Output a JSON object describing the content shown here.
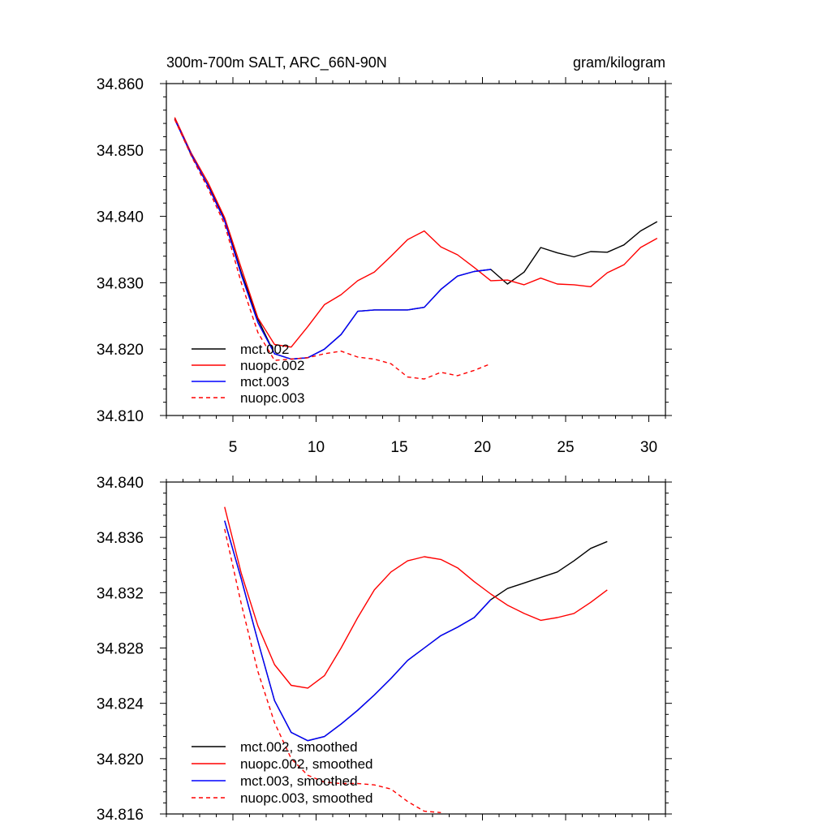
{
  "chart_data": [
    {
      "type": "line",
      "title_left": "300m-700m SALT, ARC_66N-90N",
      "title_right": "gram/kilogram",
      "xlim": [
        1,
        31
      ],
      "ylim": [
        34.81,
        34.86
      ],
      "xticks": [
        5,
        10,
        15,
        20,
        25,
        30
      ],
      "xtick_labels": [
        "5",
        "10",
        "15",
        "20",
        "25",
        "30"
      ],
      "yticks": [
        34.81,
        34.82,
        34.83,
        34.84,
        34.85,
        34.86
      ],
      "ytick_labels": [
        "34.810",
        "34.820",
        "34.830",
        "34.840",
        "34.850",
        "34.860"
      ],
      "legend_position": "bottom-left",
      "series": [
        {
          "name": "mct.002",
          "color": "#000000",
          "dash": "solid",
          "x": [
            1.5,
            2.5,
            3.5,
            4.5,
            5.5,
            6.5,
            7.5,
            8.5,
            9.5,
            10.5,
            11.5,
            12.5,
            13.5,
            14.5,
            15.5,
            16.5,
            17.5,
            18.5,
            19.5,
            20.5,
            21.5,
            22.5,
            23.5,
            24.5,
            25.5,
            26.5,
            27.5,
            28.5,
            29.5,
            30.5
          ],
          "y": [
            34.8547,
            34.8492,
            34.8447,
            34.8395,
            34.8315,
            34.8245,
            34.8193,
            34.8185,
            34.8187,
            34.82,
            34.8222,
            34.8257,
            34.8259,
            34.8259,
            34.8259,
            34.8263,
            34.829,
            34.831,
            34.8317,
            34.832,
            34.8298,
            34.8316,
            34.8353,
            34.8345,
            34.8339,
            34.8347,
            34.8346,
            34.8357,
            34.8378,
            34.8392
          ]
        },
        {
          "name": "nuopc.002",
          "color": "#ff0000",
          "dash": "solid",
          "x": [
            1.5,
            2.5,
            3.5,
            4.5,
            5.5,
            6.5,
            7.5,
            8.5,
            9.5,
            10.5,
            11.5,
            12.5,
            13.5,
            14.5,
            15.5,
            16.5,
            17.5,
            18.5,
            19.5,
            20.5,
            21.5,
            22.5,
            23.5,
            24.5,
            25.5,
            26.5,
            27.5,
            28.5,
            29.5,
            30.5
          ],
          "y": [
            34.8549,
            34.8495,
            34.8451,
            34.8398,
            34.8322,
            34.8247,
            34.8207,
            34.8203,
            34.8234,
            34.8267,
            34.8282,
            34.8303,
            34.8316,
            34.834,
            34.8365,
            34.8378,
            34.8354,
            34.8342,
            34.8323,
            34.8303,
            34.8304,
            34.8297,
            34.8307,
            34.8298,
            34.8297,
            34.8294,
            34.8315,
            34.8327,
            34.8353,
            34.8367
          ]
        },
        {
          "name": "mct.003",
          "color": "#0000ff",
          "dash": "solid",
          "x": [
            1.5,
            2.5,
            3.5,
            4.5,
            5.5,
            6.5,
            7.5,
            8.5,
            9.5,
            10.5,
            11.5,
            12.5,
            13.5,
            14.5,
            15.5,
            16.5,
            17.5,
            18.5,
            19.5,
            20.5
          ],
          "y": [
            34.8546,
            34.8493,
            34.8446,
            34.8393,
            34.8312,
            34.824,
            34.8193,
            34.8185,
            34.8187,
            34.82,
            34.8222,
            34.8257,
            34.8259,
            34.8259,
            34.8259,
            34.8263,
            34.829,
            34.831,
            34.8317,
            34.832
          ]
        },
        {
          "name": "nuopc.003",
          "color": "#ff0000",
          "dash": "dashed",
          "x": [
            1.5,
            2.5,
            3.5,
            4.5,
            5.5,
            6.5,
            7.5,
            8.5,
            9.5,
            10.5,
            11.5,
            12.5,
            13.5,
            14.5,
            15.5,
            16.5,
            17.5,
            18.5,
            19.5,
            20.5
          ],
          "y": [
            34.8546,
            34.8491,
            34.8442,
            34.8388,
            34.83,
            34.8225,
            34.8183,
            34.8185,
            34.8187,
            34.8193,
            34.8197,
            34.8188,
            34.8185,
            34.8178,
            34.8158,
            34.8155,
            34.8165,
            34.816,
            34.8168,
            34.8178
          ]
        }
      ]
    },
    {
      "type": "line",
      "xlim": [
        1,
        31
      ],
      "ylim": [
        34.816,
        34.84
      ],
      "xticks": [
        5,
        10,
        15,
        20,
        25,
        30
      ],
      "yticks": [
        34.816,
        34.82,
        34.824,
        34.828,
        34.832,
        34.836,
        34.84
      ],
      "ytick_labels": [
        "34.816",
        "34.820",
        "34.824",
        "34.828",
        "34.832",
        "34.836",
        "34.840"
      ],
      "legend_position": "bottom-left",
      "series": [
        {
          "name": "mct.002, smoothed",
          "color": "#000000",
          "dash": "solid",
          "x": [
            4.5,
            5.5,
            6.5,
            7.5,
            8.5,
            9.5,
            10.5,
            11.5,
            12.5,
            13.5,
            14.5,
            15.5,
            16.5,
            17.5,
            18.5,
            19.5,
            20.5,
            21.5,
            22.5,
            23.5,
            24.5,
            25.5,
            26.5,
            27.5
          ],
          "y": [
            34.8372,
            34.833,
            34.8285,
            34.8242,
            34.8219,
            34.8213,
            34.8216,
            34.8225,
            34.8235,
            34.8246,
            34.8258,
            34.8271,
            34.828,
            34.8289,
            34.8295,
            34.8302,
            34.8315,
            34.8323,
            34.8327,
            34.8331,
            34.8335,
            34.8343,
            34.8352,
            34.8357
          ]
        },
        {
          "name": "nuopc.002, smoothed",
          "color": "#ff0000",
          "dash": "solid",
          "x": [
            4.5,
            5.5,
            6.5,
            7.5,
            8.5,
            9.5,
            10.5,
            11.5,
            12.5,
            13.5,
            14.5,
            15.5,
            16.5,
            17.5,
            18.5,
            19.5,
            20.5,
            21.5,
            22.5,
            23.5,
            24.5,
            25.5,
            26.5,
            27.5
          ],
          "y": [
            34.8382,
            34.8334,
            34.8296,
            34.8268,
            34.8253,
            34.8251,
            34.826,
            34.828,
            34.8302,
            34.8322,
            34.8335,
            34.8343,
            34.8346,
            34.8344,
            34.8338,
            34.8328,
            34.8319,
            34.8311,
            34.8305,
            34.83,
            34.8302,
            34.8305,
            34.8313,
            34.8322
          ]
        },
        {
          "name": "mct.003, smoothed",
          "color": "#0000ff",
          "dash": "solid",
          "x": [
            4.5,
            5.5,
            6.5,
            7.5,
            8.5,
            9.5,
            10.5,
            11.5,
            12.5,
            13.5,
            14.5,
            15.5,
            16.5,
            17.5,
            18.5,
            19.5,
            20.5
          ],
          "y": [
            34.8372,
            34.833,
            34.8285,
            34.8242,
            34.8219,
            34.8213,
            34.8216,
            34.8225,
            34.8235,
            34.8246,
            34.8258,
            34.8271,
            34.828,
            34.8289,
            34.8295,
            34.8302,
            34.8315
          ]
        },
        {
          "name": "nuopc.003, smoothed",
          "color": "#ff0000",
          "dash": "dashed",
          "x": [
            4.5,
            5.5,
            6.5,
            7.5,
            8.5,
            9.5,
            10.5,
            11.5,
            12.5,
            13.5,
            14.5,
            15.5,
            16.5,
            17.5
          ],
          "y": [
            34.8366,
            34.8312,
            34.8263,
            34.8226,
            34.82,
            34.8188,
            34.8183,
            34.8182,
            34.8182,
            34.8181,
            34.8178,
            34.8169,
            34.8162,
            34.8161
          ]
        }
      ]
    }
  ]
}
